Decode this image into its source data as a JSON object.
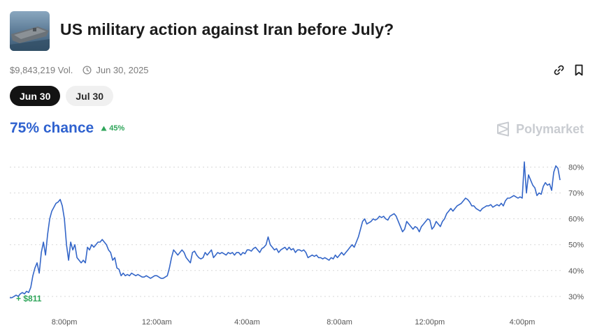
{
  "market": {
    "title": "US military action against Iran before July?",
    "thumbnail_icon": "aircraft-carrier-image",
    "volume": "$9,843,219 Vol.",
    "end_date": "Jun 30, 2025",
    "link_icon": "link-icon",
    "bookmark_icon": "bookmark-icon"
  },
  "tabs": [
    {
      "label": "Jun 30",
      "selected": true
    },
    {
      "label": "Jul 30",
      "selected": false
    }
  ],
  "outcome": {
    "chance": "75% chance",
    "delta": "45%",
    "delta_icon": "triangle-up-icon"
  },
  "brand": {
    "name": "Polymarket",
    "icon": "polymarket-logo-icon"
  },
  "colors": {
    "accent_blue": "#2f62cf",
    "line_blue": "#3466c8",
    "positive_green": "#2fa55a",
    "grid_gray": "#d8d8d8",
    "muted_text": "#7c7c7c"
  },
  "chart_data": {
    "type": "line",
    "title": "",
    "xlabel": "",
    "ylabel": "",
    "x_ticks": [
      "8:00pm",
      "12:00am",
      "4:00am",
      "8:00am",
      "12:00pm",
      "4:00pm"
    ],
    "x_tick_index": [
      26,
      70,
      113,
      157,
      200,
      244
    ],
    "y_ticks": [
      "30%",
      "40%",
      "50%",
      "60%",
      "70%",
      "80%"
    ],
    "y_tick_values": [
      30,
      40,
      50,
      60,
      70,
      80
    ],
    "ylim": [
      27,
      85
    ],
    "grid": "horizontal dotted",
    "start_annotation": "+ $811",
    "series": [
      {
        "values": [
          29.5,
          29.5,
          30.0,
          30.5,
          30.0,
          31.0,
          31.5,
          31.0,
          32.0,
          31.5,
          33.5,
          38.0,
          41.0,
          43.0,
          39.0,
          47.0,
          51.0,
          46.0,
          54.0,
          60.0,
          63.0,
          64.5,
          66.0,
          66.5,
          67.5,
          65.0,
          60.0,
          50.0,
          44.0,
          51.0,
          48.0,
          50.0,
          45.0,
          44.0,
          43.0,
          44.0,
          43.0,
          49.0,
          48.0,
          50.0,
          49.0,
          50.0,
          51.0,
          51.0,
          52.0,
          51.0,
          50.0,
          48.0,
          47.0,
          44.0,
          45.0,
          41.0,
          40.5,
          38.0,
          39.0,
          38.0,
          38.5,
          38.0,
          39.0,
          38.5,
          38.0,
          38.5,
          38.0,
          37.5,
          37.5,
          38.0,
          37.5,
          37.0,
          37.5,
          38.0,
          38.0,
          37.5,
          37.0,
          37.0,
          37.5,
          38.0,
          41.0,
          45.0,
          48.0,
          47.0,
          46.0,
          47.0,
          48.0,
          47.0,
          45.0,
          44.0,
          43.0,
          47.0,
          47.5,
          46.0,
          45.0,
          44.5,
          45.0,
          47.0,
          46.0,
          47.0,
          48.0,
          45.0,
          46.0,
          47.0,
          46.5,
          47.0,
          46.5,
          46.0,
          47.0,
          46.5,
          47.0,
          46.0,
          47.0,
          47.0,
          46.0,
          47.0,
          46.5,
          48.0,
          48.0,
          47.5,
          48.5,
          49.0,
          48.0,
          47.0,
          48.5,
          49.0,
          50.0,
          53.0,
          50.0,
          49.0,
          48.0,
          48.5,
          47.0,
          48.0,
          48.5,
          49.0,
          48.0,
          49.0,
          48.0,
          48.5,
          47.0,
          48.0,
          48.0,
          47.5,
          48.0,
          47.0,
          45.0,
          45.5,
          46.0,
          45.5,
          46.0,
          45.0,
          45.0,
          44.5,
          45.0,
          44.5,
          44.0,
          45.0,
          44.5,
          46.0,
          45.0,
          46.0,
          47.0,
          46.0,
          47.0,
          48.0,
          49.0,
          50.0,
          49.0,
          51.0,
          53.0,
          56.0,
          59.0,
          60.0,
          58.0,
          58.5,
          59.0,
          60.0,
          59.5,
          60.0,
          61.0,
          60.5,
          61.0,
          60.0,
          59.5,
          61.0,
          61.5,
          62.0,
          61.0,
          59.0,
          57.0,
          55.0,
          56.0,
          59.0,
          58.0,
          57.0,
          56.0,
          57.0,
          56.5,
          55.0,
          57.0,
          58.0,
          59.0,
          60.0,
          59.5,
          56.0,
          57.0,
          59.0,
          58.0,
          57.0,
          59.0,
          60.0,
          62.0,
          63.0,
          64.0,
          63.0,
          64.0,
          65.0,
          65.5,
          66.0,
          67.0,
          68.0,
          67.5,
          66.5,
          65.0,
          65.0,
          64.0,
          63.5,
          63.0,
          64.0,
          64.5,
          65.0,
          65.0,
          65.5,
          64.5,
          65.0,
          65.5,
          65.0,
          66.0,
          65.0,
          67.0,
          68.0,
          68.0,
          68.5,
          69.0,
          68.5,
          68.0,
          68.5,
          68.0,
          82.0,
          70.0,
          77.0,
          75.0,
          73.0,
          72.0,
          69.0,
          70.0,
          69.5,
          72.5,
          74.0,
          73.0,
          73.5,
          71.0,
          78.0,
          80.5,
          79.5,
          75.0
        ]
      }
    ]
  }
}
